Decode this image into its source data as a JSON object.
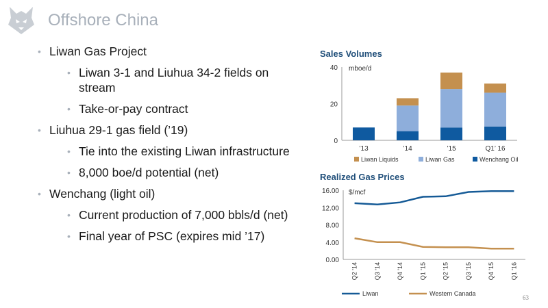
{
  "header": {
    "title": "Offshore China"
  },
  "bullets": [
    {
      "level": 1,
      "text": "Liwan Gas Project"
    },
    {
      "level": 2,
      "text": "Liwan 3-1 and Liuhua 34-2 fields on stream"
    },
    {
      "level": 2,
      "text": "Take-or-pay contract"
    },
    {
      "level": 1,
      "text": "Liuhua 29-1 gas field (’19)"
    },
    {
      "level": 2,
      "text": "Tie into the existing Liwan infrastructure"
    },
    {
      "level": 2,
      "text": "8,000 boe/d potential (net)"
    },
    {
      "level": 1,
      "text": "Wenchang (light oil)"
    },
    {
      "level": 2,
      "text": "Current production of 7,000 bbls/d (net)"
    },
    {
      "level": 2,
      "text": "Final year of PSC (expires mid ’17)"
    }
  ],
  "page_number": "63",
  "colors": {
    "liwan_liquids": "#c4904f",
    "liwan_gas": "#8eaedb",
    "wenchang_oil": "#0f5aa0",
    "liwan_line": "#155a96",
    "western_canada_line": "#c4904f",
    "chart_title": "#1f4e79",
    "slide_title": "#a8b0ba"
  },
  "chart_data": [
    {
      "type": "bar",
      "stacked": true,
      "title": "Sales Volumes",
      "unit_label": "mboe/d",
      "categories": [
        "’13",
        "’14",
        "’15",
        "Q1’ 16"
      ],
      "series": [
        {
          "name": "Wenchang Oil",
          "values": [
            7,
            5,
            7,
            7.5
          ]
        },
        {
          "name": "Liwan Gas",
          "values": [
            0,
            14,
            21,
            18.5
          ]
        },
        {
          "name": "Liwan Liquids",
          "values": [
            0,
            4,
            9,
            5
          ]
        }
      ],
      "ylim": [
        0,
        40
      ],
      "yticks": [
        0,
        20,
        40
      ],
      "legend": "bottom"
    },
    {
      "type": "line",
      "title": "Realized Gas Prices",
      "unit_label": "$/mcf",
      "categories": [
        "Q2 '14",
        "Q3 '14",
        "Q4 '14",
        "Q1 '15",
        "Q2 '15",
        "Q3 '15",
        "Q4 '15",
        "Q1 '16"
      ],
      "series": [
        {
          "name": "Liwan",
          "values": [
            13.0,
            12.7,
            13.2,
            14.5,
            14.6,
            15.6,
            15.8,
            15.8
          ]
        },
        {
          "name": "Western Canada",
          "values": [
            4.9,
            4.0,
            4.0,
            2.9,
            2.8,
            2.8,
            2.5,
            2.5
          ]
        }
      ],
      "ylim": [
        0,
        16
      ],
      "yticks": [
        "0.00",
        "4.00",
        "8.00",
        "12.00",
        "16.00"
      ],
      "legend": "bottom"
    }
  ]
}
